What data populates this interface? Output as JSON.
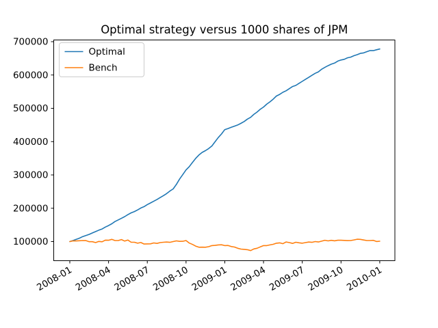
{
  "figure": {
    "background": "#ffffff",
    "frame_color": "#000000"
  },
  "chart_data": {
    "type": "line",
    "title": "Optimal strategy versus 1000 shares of JPM",
    "xlabel": "",
    "ylabel": "",
    "grid": false,
    "legend_position": "upper left",
    "legend_border_color": "#cccccc",
    "x": [
      "2008-01",
      "2008-02",
      "2008-03",
      "2008-04",
      "2008-05",
      "2008-06",
      "2008-07",
      "2008-08",
      "2008-09",
      "2008-10",
      "2008-11",
      "2008-12",
      "2009-01",
      "2009-02",
      "2009-03",
      "2009-04",
      "2009-05",
      "2009-06",
      "2009-07",
      "2009-08",
      "2009-09",
      "2009-10",
      "2009-11",
      "2009-12",
      "2010-01"
    ],
    "x_tick_labels": [
      "2008-01",
      "2008-04",
      "2008-07",
      "2008-10",
      "2009-01",
      "2009-04",
      "2009-07",
      "2009-10",
      "2010-01"
    ],
    "yticks": [
      100000,
      200000,
      300000,
      400000,
      500000,
      600000,
      700000
    ],
    "ytick_labels": [
      "100000",
      "200000",
      "300000",
      "400000",
      "500000",
      "600000",
      "700000"
    ],
    "ylim": [
      43000,
      705000
    ],
    "series": [
      {
        "name": "Optimal",
        "color": "#1f77b4",
        "values": [
          100000,
          115000,
          130000,
          148000,
          170000,
          190000,
          211000,
          232000,
          258000,
          315000,
          360000,
          387000,
          436000,
          450000,
          473000,
          504000,
          537000,
          559000,
          581000,
          605000,
          628000,
          645000,
          658000,
          670000,
          678000
        ]
      },
      {
        "name": "Bench",
        "color": "#ff7f0e",
        "values": [
          100000,
          103000,
          97000,
          104000,
          106000,
          98000,
          93000,
          97000,
          100000,
          103000,
          83000,
          88000,
          88000,
          80000,
          73000,
          88000,
          95000,
          97000,
          95000,
          100000,
          102000,
          104000,
          105000,
          103000,
          101000
        ]
      }
    ]
  }
}
